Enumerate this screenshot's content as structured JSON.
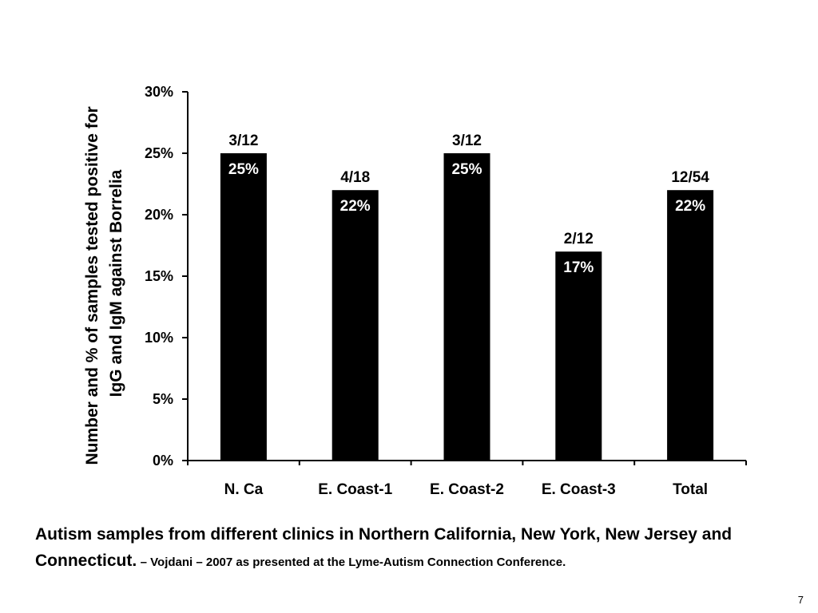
{
  "chart_data": {
    "type": "bar",
    "categories": [
      "N. Ca",
      "E. Coast-1",
      "E. Coast-2",
      "E. Coast-3",
      "Total"
    ],
    "values": [
      25,
      22,
      25,
      17,
      22
    ],
    "value_labels": [
      "25%",
      "22%",
      "25%",
      "17%",
      "22%"
    ],
    "count_labels": [
      "3/12",
      "4/18",
      "3/12",
      "2/12",
      "12/54"
    ],
    "ylabel_line1": "Number and % of samples tested positive for",
    "ylabel_line2": "IgG and IgM against Borrelia",
    "ylim": [
      0,
      30
    ],
    "yticks": [
      0,
      5,
      10,
      15,
      20,
      25,
      30
    ],
    "ytick_labels": [
      "0%",
      "5%",
      "10%",
      "15%",
      "20%",
      "25%",
      "30%"
    ],
    "grid": false,
    "bar_color": "#000000",
    "value_label_color": "#ffffff"
  },
  "caption": {
    "main": "Autism samples from different clinics in Northern California, New York, New Jersey and Connecticut.",
    "credit": "– Vojdani – 2007 as presented at the Lyme-Autism Connection Conference."
  },
  "page_number": "7"
}
